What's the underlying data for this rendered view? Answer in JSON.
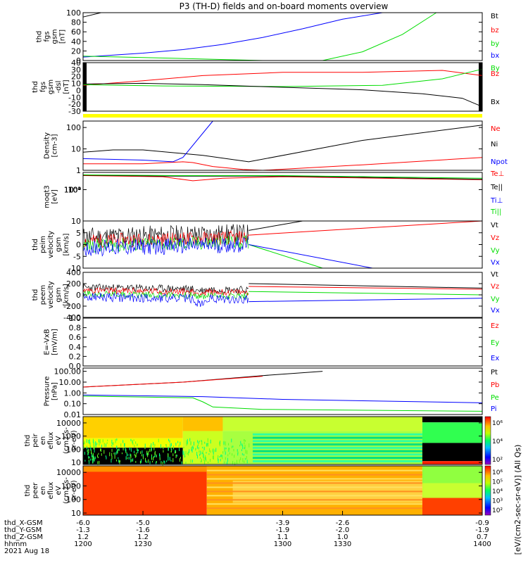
{
  "title": "P3 (TH-D) fields and on-board moments overview",
  "colors": {
    "black": "#000000",
    "red": "#ff0000",
    "green": "#00dd00",
    "blue": "#0000ff",
    "yellow": "#ffff00"
  },
  "chart_data": [
    {
      "type": "line",
      "name": "fgs_gsm",
      "ylabel_lines": [
        "thd",
        "fgs",
        "gsm",
        "[nT]"
      ],
      "ylim": [
        -10,
        100
      ],
      "log": false,
      "ticks": [
        "100",
        "80",
        "60",
        "40",
        "20",
        "0"
      ],
      "legend": [
        {
          "text": "Bt",
          "color": "black"
        },
        {
          "text": "bz",
          "color": "red"
        },
        {
          "text": "by",
          "color": "green"
        },
        {
          "text": "bx",
          "color": "blue"
        }
      ],
      "series": [
        {
          "color": "black",
          "x": [
            1200,
            1209
          ],
          "y": [
            90,
            100
          ]
        },
        {
          "color": "blue",
          "x": [
            1200,
            1230,
            1250,
            1270,
            1290,
            1310,
            1330,
            1350
          ],
          "y": [
            -2,
            7,
            15,
            27,
            43,
            63,
            85,
            100
          ]
        },
        {
          "color": "green",
          "x": [
            1200,
            1230,
            1290,
            1320,
            1325,
            1340,
            1360,
            1377
          ],
          "y": [
            0,
            -3,
            -10,
            -10,
            -5,
            10,
            50,
            100
          ]
        }
      ]
    },
    {
      "type": "line",
      "name": "fgs_dsl",
      "ylabel_lines": [
        "thd",
        "fgs",
        "gsm",
        "-dsl",
        "[nT]"
      ],
      "ylim": [
        -35,
        40
      ],
      "log": false,
      "ticks": [
        "40",
        "30",
        "20",
        "10",
        "0",
        "-10",
        "-20",
        "-30"
      ],
      "legend": [
        {
          "text": "By",
          "color": "green"
        },
        {
          "text": "Bz",
          "color": "red"
        },
        {
          "text": "Bx",
          "color": "black"
        }
      ],
      "series": [
        {
          "color": "red",
          "x": [
            1200,
            1230,
            1260,
            1300,
            1340,
            1380,
            1400
          ],
          "y": [
            5,
            12,
            20,
            25,
            25,
            28,
            20
          ]
        },
        {
          "color": "green",
          "x": [
            1200,
            1240,
            1300,
            1350,
            1380,
            1400
          ],
          "y": [
            6,
            4,
            3,
            5,
            15,
            30
          ]
        },
        {
          "color": "black",
          "x": [
            1200,
            1230,
            1260,
            1300,
            1340,
            1370,
            1390,
            1400
          ],
          "y": [
            7,
            8,
            6,
            2,
            -2,
            -8,
            -15,
            -28
          ]
        }
      ]
    },
    {
      "type": "line",
      "name": "density",
      "ylabel_lines": [
        "Density",
        "[cm-3]"
      ],
      "ylim": [
        1,
        200
      ],
      "log": true,
      "ticks": [
        "100",
        "10",
        "1"
      ],
      "legend": [
        {
          "text": "Ne",
          "color": "red"
        },
        {
          "text": "Ni",
          "color": "black"
        },
        {
          "text": "Npot",
          "color": "blue"
        }
      ],
      "series": [
        {
          "color": "black",
          "x": [
            1200,
            1215,
            1230,
            1260,
            1283,
            1340,
            1400
          ],
          "y": [
            7,
            9,
            9,
            5,
            2.5,
            25,
            130
          ]
        },
        {
          "color": "red",
          "x": [
            1200,
            1230,
            1250,
            1255,
            1265,
            1280,
            1290,
            1340,
            1400
          ],
          "y": [
            2,
            2,
            2.5,
            2.3,
            1.5,
            1.1,
            1,
            1.8,
            4
          ]
        },
        {
          "color": "blue",
          "x": [
            1200,
            1230,
            1245,
            1250,
            1265
          ],
          "y": [
            3.5,
            3,
            2.5,
            4,
            200
          ]
        }
      ]
    },
    {
      "type": "line",
      "name": "moqt3",
      "ylabel_lines": [
        "moqt3",
        "[eV]"
      ],
      "ylim": [
        1e-05,
        20000
      ],
      "log": true,
      "ticks": [
        "10⁴",
        "10²",
        "10⁰",
        "10⁻²",
        "10⁻⁴"
      ],
      "legend": [
        {
          "text": "Te⊥",
          "color": "red"
        },
        {
          "text": "Te||",
          "color": "black"
        },
        {
          "text": "Ti⊥",
          "color": "blue"
        },
        {
          "text": "Ti||",
          "color": "green"
        }
      ],
      "series": [
        {
          "color": "red",
          "x": [
            1200,
            1240,
            1255,
            1270,
            1300,
            1400
          ],
          "y": [
            5000,
            3000,
            500,
            1500,
            3000,
            800
          ]
        },
        {
          "color": "black",
          "x": [
            1200,
            1240,
            1300,
            1400
          ],
          "y": [
            6000,
            4000,
            4000,
            1000
          ]
        },
        {
          "color": "green",
          "x": [
            1200,
            1250,
            1300,
            1400
          ],
          "y": [
            7000,
            5000,
            5000,
            1500
          ]
        }
      ]
    },
    {
      "type": "line",
      "name": "peim_velocity",
      "ylabel_lines": [
        "thd",
        "peim",
        "velocity",
        "gsm",
        "[km/s]"
      ],
      "ylim": [
        -10,
        10
      ],
      "log": false,
      "ticks": [
        "10",
        "5",
        "0",
        "-5",
        "-10"
      ],
      "legend": [
        {
          "text": "Vt",
          "color": "black"
        },
        {
          "text": "Vz",
          "color": "red"
        },
        {
          "text": "Vy",
          "color": "green"
        },
        {
          "text": "Vx",
          "color": "blue"
        }
      ],
      "series": [
        {
          "color": "black",
          "x": [
            1283,
            1310
          ],
          "y": [
            6,
            11
          ]
        },
        {
          "color": "red",
          "x": [
            1283,
            1400
          ],
          "y": [
            4,
            10
          ]
        },
        {
          "color": "green",
          "x": [
            1283,
            1320
          ],
          "y": [
            0,
            -11
          ]
        },
        {
          "color": "blue",
          "x": [
            1283,
            1345
          ],
          "y": [
            0,
            -11
          ]
        }
      ]
    },
    {
      "type": "line",
      "name": "peem_velocity",
      "ylabel_lines": [
        "thd",
        "peem",
        "velocity",
        "gsm",
        "[km/s]"
      ],
      "ylim": [
        -400,
        400
      ],
      "log": false,
      "ticks": [
        "400",
        "200",
        "0",
        "-200",
        "-400"
      ],
      "legend": [
        {
          "text": "Vt",
          "color": "black"
        },
        {
          "text": "Vz",
          "color": "red"
        },
        {
          "text": "Vy",
          "color": "green"
        },
        {
          "text": "Vx",
          "color": "blue"
        }
      ],
      "series": [
        {
          "color": "black",
          "x": [
            1283,
            1400
          ],
          "y": [
            200,
            120
          ]
        },
        {
          "color": "red",
          "x": [
            1283,
            1400
          ],
          "y": [
            150,
            100
          ]
        },
        {
          "color": "green",
          "x": [
            1283,
            1400
          ],
          "y": [
            60,
            0
          ]
        },
        {
          "color": "blue",
          "x": [
            1283,
            1400
          ],
          "y": [
            -120,
            -60
          ]
        }
      ]
    },
    {
      "type": "line",
      "name": "e_field",
      "ylabel_lines": [
        "E=-VxB",
        "[mV/m]"
      ],
      "ylim": [
        0,
        1
      ],
      "log": false,
      "ticks": [
        "1.0",
        "0.8",
        "0.6",
        "0.4",
        "0.2",
        "0.0"
      ],
      "legend": [
        {
          "text": "Ez",
          "color": "red"
        },
        {
          "text": "Ey",
          "color": "green"
        },
        {
          "text": "Ex",
          "color": "blue"
        }
      ],
      "series": []
    },
    {
      "type": "line",
      "name": "pressure",
      "ylabel_lines": [
        "Pressure",
        "[nPa]"
      ],
      "ylim": [
        0.01,
        200
      ],
      "log": true,
      "ticks": [
        "100.00",
        "10.00",
        "1.00",
        "0.10",
        "0.01"
      ],
      "legend": [
        {
          "text": "Pt",
          "color": "black"
        },
        {
          "text": "Pb",
          "color": "red"
        },
        {
          "text": "Pe",
          "color": "green"
        },
        {
          "text": "Pi",
          "color": "blue"
        }
      ],
      "series": [
        {
          "color": "black",
          "x": [
            1200,
            1250,
            1290,
            1320
          ],
          "y": [
            3.5,
            10,
            40,
            100
          ]
        },
        {
          "color": "red",
          "x": [
            1200,
            1250,
            1290
          ],
          "y": [
            3.5,
            10,
            35
          ]
        },
        {
          "color": "blue",
          "x": [
            1200,
            1260,
            1300,
            1400
          ],
          "y": [
            0.65,
            0.45,
            0.25,
            0.12
          ]
        },
        {
          "color": "green",
          "x": [
            1200,
            1255,
            1260,
            1265,
            1290,
            1400
          ],
          "y": [
            0.5,
            0.35,
            0.15,
            0.05,
            0.03,
            0.02
          ]
        }
      ]
    },
    {
      "type": "heatmap",
      "name": "peir_spectrogram",
      "ylabel_lines": [
        "thd",
        "peir",
        "en",
        "eflux",
        "eV",
        "(cm2-s-",
        "sr-eV)"
      ],
      "ylim": [
        7,
        30000
      ],
      "log": true,
      "ticks": [
        "10000",
        "1000",
        "100",
        "10"
      ]
    },
    {
      "type": "heatmap",
      "name": "peer_spectrogram",
      "ylabel_lines": [
        "thd",
        "peer",
        "en",
        "eflux",
        "eV",
        "(cm2-s-",
        "sr-eV)"
      ],
      "ylim": [
        7,
        30000
      ],
      "log": true,
      "ticks": [
        "10000",
        "1000",
        "100",
        "10"
      ]
    }
  ],
  "colorbar": {
    "label": "[eV/(cm2-sec-sr-eV)] (All Qs)",
    "ticks_top": [
      "10⁶",
      "10⁴",
      "10²"
    ],
    "ticks_bottom": [
      "10⁶",
      "10⁵",
      "10⁴",
      "10³",
      "10²"
    ]
  },
  "x_axis": {
    "row_labels": [
      "thd_X-GSM",
      "thd_Y-GSM",
      "thd_Z-GSM",
      "hhmm",
      "2021 Aug 18"
    ],
    "xlim": [
      1200,
      1400
    ],
    "ticks": [
      {
        "t": 1200,
        "vals": [
          "-6.0",
          "-1.3",
          "1.2",
          "1200"
        ]
      },
      {
        "t": 1230,
        "vals": [
          "-5.0",
          "-1.6",
          "1.2",
          "1230"
        ]
      },
      {
        "t": 1300,
        "vals": [
          "-3.9",
          "-1.9",
          "1.1",
          "1300"
        ]
      },
      {
        "t": 1330,
        "vals": [
          "-2.6",
          "-2.0",
          "1.0",
          "1330"
        ]
      },
      {
        "t": 1400,
        "vals": [
          "-0.9",
          "-1.9",
          "0.7",
          "1400"
        ]
      }
    ]
  }
}
